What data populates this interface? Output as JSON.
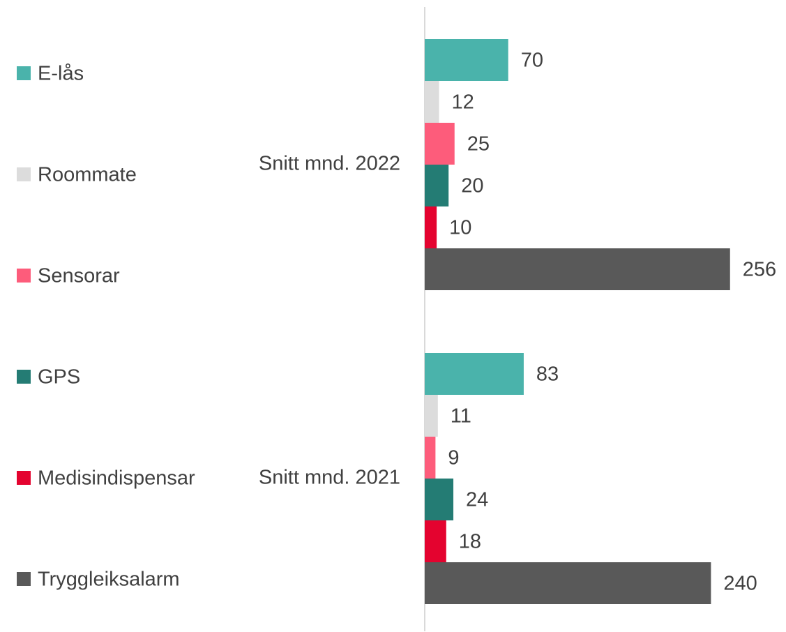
{
  "chart_data": {
    "type": "hbar",
    "categories": [
      "Snitt mnd. 2022",
      "Snitt mnd. 2021"
    ],
    "series": [
      {
        "name": "E-lås",
        "color": "#4ab3ab",
        "values": [
          70,
          83
        ]
      },
      {
        "name": "Roommate",
        "color": "#dcdcdc",
        "values": [
          12,
          11
        ]
      },
      {
        "name": "Sensorar",
        "color": "#fd5c7b",
        "values": [
          25,
          9
        ]
      },
      {
        "name": "GPS",
        "color": "#247c74",
        "values": [
          20,
          24
        ]
      },
      {
        "name": "Medisindispensar",
        "color": "#e4032f",
        "values": [
          10,
          18
        ]
      },
      {
        "name": "Tryggleiksalarm",
        "color": "#595959",
        "values": [
          256,
          240
        ]
      }
    ],
    "xlim": [
      0,
      300
    ],
    "legend": "left"
  }
}
